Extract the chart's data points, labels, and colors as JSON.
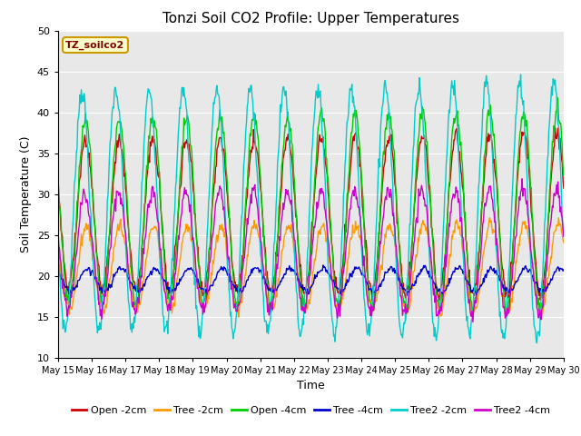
{
  "title": "Tonzi Soil CO2 Profile: Upper Temperatures",
  "xlabel": "Time",
  "ylabel": "Soil Temperature (C)",
  "ylim": [
    10,
    50
  ],
  "yticks": [
    10,
    15,
    20,
    25,
    30,
    35,
    40,
    45,
    50
  ],
  "legend_label": "TZ_soilco2",
  "series": [
    {
      "label": "Open -2cm",
      "color": "#cc0000"
    },
    {
      "label": "Tree -2cm",
      "color": "#ff9900"
    },
    {
      "label": "Open -4cm",
      "color": "#00cc00"
    },
    {
      "label": "Tree -4cm",
      "color": "#0000cc"
    },
    {
      "label": "Tree2 -2cm",
      "color": "#00cccc"
    },
    {
      "label": "Tree2 -4cm",
      "color": "#cc00cc"
    }
  ],
  "date_start": 15,
  "date_end": 30,
  "bg_color": "#e8e8e8",
  "figsize": [
    6.4,
    4.8
  ],
  "dpi": 100
}
